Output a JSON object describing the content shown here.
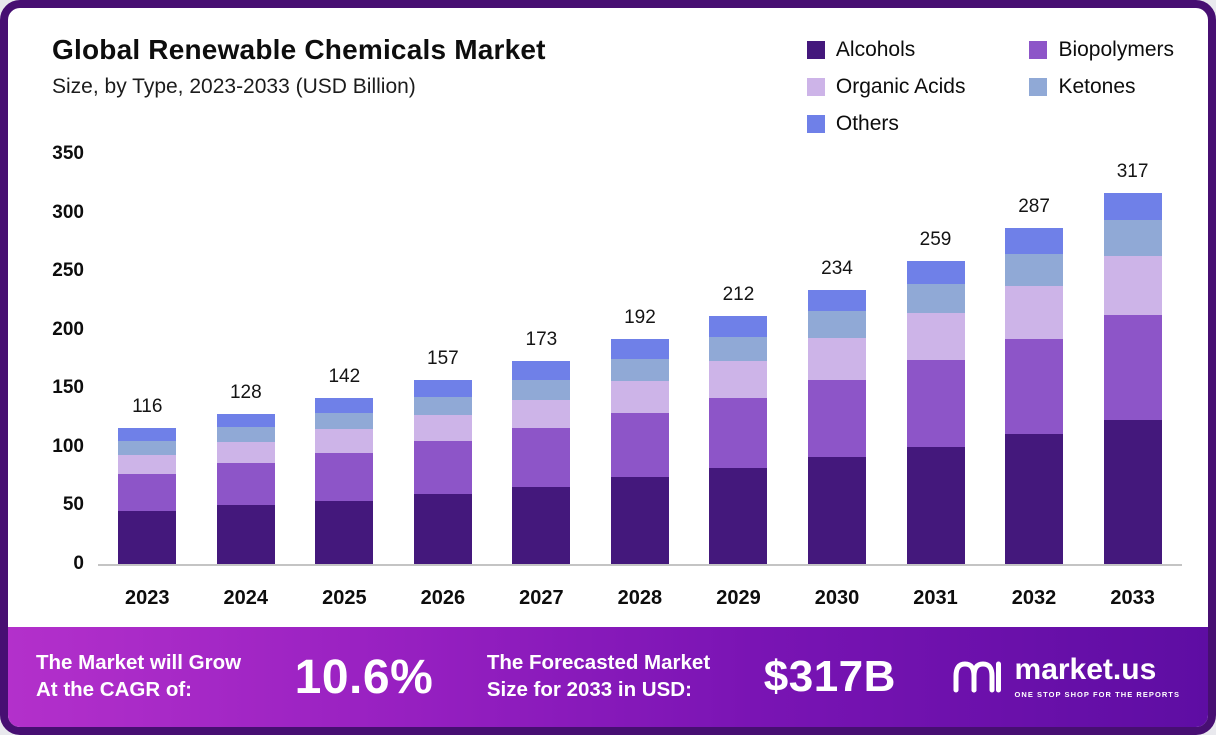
{
  "header": {
    "title": "Global Renewable Chemicals Market",
    "subtitle": "Size, by Type, 2023-2033 (USD Billion)"
  },
  "legend": {
    "items": [
      {
        "label": "Alcohols",
        "color": "#44187c"
      },
      {
        "label": "Biopolymers",
        "color": "#8d55c8"
      },
      {
        "label": "Organic Acids",
        "color": "#cdb4e8"
      },
      {
        "label": "Ketones",
        "color": "#90a9d6"
      },
      {
        "label": "Others",
        "color": "#6f80e8"
      }
    ]
  },
  "chart_data": {
    "type": "bar",
    "stacked": true,
    "title": "Global Renewable Chemicals Market Size, by Type, 2023-2033 (USD Billion)",
    "categories": [
      "2023",
      "2024",
      "2025",
      "2026",
      "2027",
      "2028",
      "2029",
      "2030",
      "2031",
      "2032",
      "2033"
    ],
    "totals": [
      116,
      128,
      142,
      157,
      173,
      192,
      212,
      234,
      259,
      287,
      317
    ],
    "series": [
      {
        "name": "Alcohols",
        "color": "#44187c",
        "values": [
          45,
          50,
          54,
          60,
          66,
          74,
          82,
          91,
          100,
          111,
          123
        ]
      },
      {
        "name": "Biopolymers",
        "color": "#8d55c8",
        "values": [
          32,
          36,
          41,
          45,
          50,
          55,
          60,
          66,
          74,
          81,
          90
        ]
      },
      {
        "name": "Organic Acids",
        "color": "#cdb4e8",
        "values": [
          16,
          18,
          20,
          22,
          24,
          27,
          31,
          36,
          40,
          45,
          50
        ]
      },
      {
        "name": "Ketones",
        "color": "#90a9d6",
        "values": [
          12,
          13,
          14,
          16,
          17,
          19,
          21,
          23,
          25,
          28,
          31
        ]
      },
      {
        "name": "Others",
        "color": "#6f80e8",
        "values": [
          11,
          11,
          13,
          14,
          16,
          17,
          18,
          18,
          20,
          22,
          23
        ]
      }
    ],
    "xlabel": "",
    "ylabel": "",
    "ylim": [
      0,
      350
    ],
    "yticks": [
      0,
      50,
      100,
      150,
      200,
      250,
      300,
      350
    ],
    "grid": false,
    "legend_position": "top-right"
  },
  "banner": {
    "cagr_label_line1": "The Market will Grow",
    "cagr_label_line2": "At the CAGR of:",
    "cagr_value": "10.6%",
    "forecast_label_line1": "The Forecasted Market",
    "forecast_label_line2": "Size for 2033 in USD:",
    "forecast_value": "$317B",
    "brand": "market.us",
    "brand_tagline": "ONE STOP SHOP FOR THE REPORTS"
  }
}
